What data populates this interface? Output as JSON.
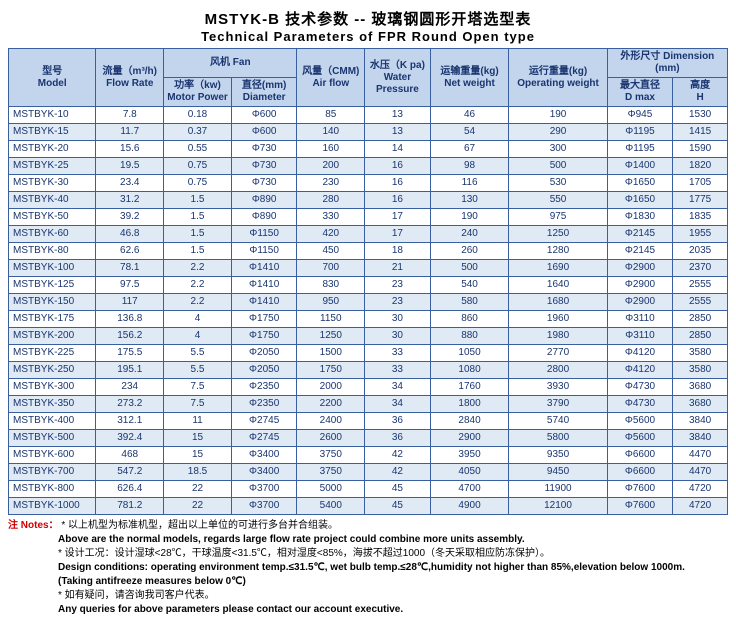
{
  "title_cn": "MSTYK-B  技术参数 -- 玻璃钢圆形开塔选型表",
  "title_en": "Technical Parameters of FPR Round Open type",
  "headers": {
    "model_cn": "型号",
    "model_en": "Model",
    "flow_cn": "流量（m³/h)",
    "flow_en": "Flow Rate",
    "fan_cn": "风机",
    "fan_en": "Fan",
    "motor_cn": "功率（kw)",
    "motor_en": "Motor Power",
    "dia_cn": "直径(mm)",
    "dia_en": "Diameter",
    "air_cn": "风量（CMM)",
    "air_en": "Air flow",
    "water_cn": "水压（K pa)",
    "water_en1": "Water",
    "water_en2": "Pressure",
    "net_cn": "运输重量(kg)",
    "net_en": "Net weight",
    "op_cn": "运行重量(kg)",
    "op_en": "Operating weight",
    "dim_cn": "外形尺寸",
    "dim_en": "Dimension (mm)",
    "dmax_cn": "最大直径",
    "dmax_en": "D max",
    "h_cn": "高度",
    "h_en": "H"
  },
  "rows": [
    [
      "MSTBYK-10",
      "7.8",
      "0.18",
      "Φ600",
      "85",
      "13",
      "46",
      "190",
      "Φ945",
      "1530"
    ],
    [
      "MSTBYK-15",
      "11.7",
      "0.37",
      "Φ600",
      "140",
      "13",
      "54",
      "290",
      "Φ1195",
      "1415"
    ],
    [
      "MSTBYK-20",
      "15.6",
      "0.55",
      "Φ730",
      "160",
      "14",
      "67",
      "300",
      "Φ1195",
      "1590"
    ],
    [
      "MSTBYK-25",
      "19.5",
      "0.75",
      "Φ730",
      "200",
      "16",
      "98",
      "500",
      "Φ1400",
      "1820"
    ],
    [
      "MSTBYK-30",
      "23.4",
      "0.75",
      "Φ730",
      "230",
      "16",
      "116",
      "530",
      "Φ1650",
      "1705"
    ],
    [
      "MSTBYK-40",
      "31.2",
      "1.5",
      "Φ890",
      "280",
      "16",
      "130",
      "550",
      "Φ1650",
      "1775"
    ],
    [
      "MSTBYK-50",
      "39.2",
      "1.5",
      "Φ890",
      "330",
      "17",
      "190",
      "975",
      "Φ1830",
      "1835"
    ],
    [
      "MSTBYK-60",
      "46.8",
      "1.5",
      "Φ1150",
      "420",
      "17",
      "240",
      "1250",
      "Φ2145",
      "1955"
    ],
    [
      "MSTBYK-80",
      "62.6",
      "1.5",
      "Φ1150",
      "450",
      "18",
      "260",
      "1280",
      "Φ2145",
      "2035"
    ],
    [
      "MSTBYK-100",
      "78.1",
      "2.2",
      "Φ1410",
      "700",
      "21",
      "500",
      "1690",
      "Φ2900",
      "2370"
    ],
    [
      "MSTBYK-125",
      "97.5",
      "2.2",
      "Φ1410",
      "830",
      "23",
      "540",
      "1640",
      "Φ2900",
      "2555"
    ],
    [
      "MSTBYK-150",
      "117",
      "2.2",
      "Φ1410",
      "950",
      "23",
      "580",
      "1680",
      "Φ2900",
      "2555"
    ],
    [
      "MSTBYK-175",
      "136.8",
      "4",
      "Φ1750",
      "1150",
      "30",
      "860",
      "1960",
      "Φ3110",
      "2850"
    ],
    [
      "MSTBYK-200",
      "156.2",
      "4",
      "Φ1750",
      "1250",
      "30",
      "880",
      "1980",
      "Φ3110",
      "2850"
    ],
    [
      "MSTBYK-225",
      "175.5",
      "5.5",
      "Φ2050",
      "1500",
      "33",
      "1050",
      "2770",
      "Φ4120",
      "3580"
    ],
    [
      "MSTBYK-250",
      "195.1",
      "5.5",
      "Φ2050",
      "1750",
      "33",
      "1080",
      "2800",
      "Φ4120",
      "3580"
    ],
    [
      "MSTBYK-300",
      "234",
      "7.5",
      "Φ2350",
      "2000",
      "34",
      "1760",
      "3930",
      "Φ4730",
      "3680"
    ],
    [
      "MSTBYK-350",
      "273.2",
      "7.5",
      "Φ2350",
      "2200",
      "34",
      "1800",
      "3790",
      "Φ4730",
      "3680"
    ],
    [
      "MSTBYK-400",
      "312.1",
      "11",
      "Φ2745",
      "2400",
      "36",
      "2840",
      "5740",
      "Φ5600",
      "3840"
    ],
    [
      "MSTBYK-500",
      "392.4",
      "15",
      "Φ2745",
      "2600",
      "36",
      "2900",
      "5800",
      "Φ5600",
      "3840"
    ],
    [
      "MSTBYK-600",
      "468",
      "15",
      "Φ3400",
      "3750",
      "42",
      "3950",
      "9350",
      "Φ6600",
      "4470"
    ],
    [
      "MSTBYK-700",
      "547.2",
      "18.5",
      "Φ3400",
      "3750",
      "42",
      "4050",
      "9450",
      "Φ6600",
      "4470"
    ],
    [
      "MSTBYK-800",
      "626.4",
      "22",
      "Φ3700",
      "5000",
      "45",
      "4700",
      "11900",
      "Φ7600",
      "4720"
    ],
    [
      "MSTBYK-1000",
      "781.2",
      "22",
      "Φ3700",
      "5400",
      "45",
      "4900",
      "12100",
      "Φ7600",
      "4720"
    ]
  ],
  "notes": {
    "label": "注 Notes：",
    "n1_cn": "* 以上机型为标准机型，超出以上单位的可进行多台并合组装。",
    "n1_en": "Above are the normal models, regards large flow rate project could combine more units assembly.",
    "n2_cn": "* 设计工况：设计湿球<28℃，干球温度<31.5℃，相对湿度<85%，海拔不超过1000（冬天采取相应防冻保护）。",
    "n2_en": "Design conditions: operating environment temp.≤31.5℃, wet bulb temp.≤28℃,humidity not higher than 85%,elevation below 1000m.",
    "n2_en2": "(Taking antifreeze measures below 0℃)",
    "n3_cn": "* 如有疑问，请咨询我司客户代表。",
    "n3_en": "Any queries for above parameters please contact our account executive."
  },
  "colors": {
    "header_bg": "#c2d5ed",
    "alt_row": "#e0eaf5",
    "border": "#3a5fa0",
    "text": "#1a3570",
    "notes_label": "#d00000"
  }
}
